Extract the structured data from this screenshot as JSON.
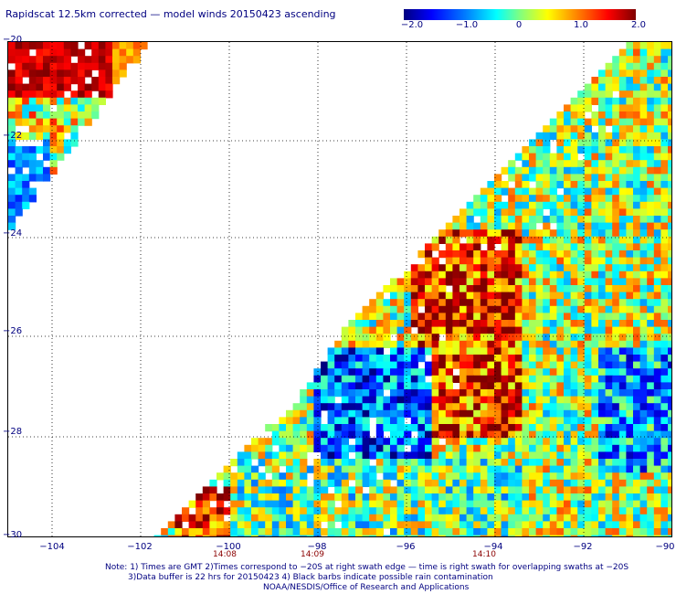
{
  "title": "Rapidscat 12.5km corrected — model winds 20150423 ascending",
  "colorbar": {
    "labels": [
      "−2.0",
      "−1.0",
      "0",
      "1.0",
      "2.0"
    ],
    "colors": [
      "#00007f",
      "#0000ff",
      "#0080ff",
      "#00ffff",
      "#80ff80",
      "#ffff00",
      "#ff8000",
      "#ff0000",
      "#7f0000"
    ]
  },
  "axes": {
    "lat_labels": [
      "−20",
      "−22",
      "−24",
      "−26",
      "−28",
      "−30"
    ],
    "lon_labels": [
      "−104",
      "−102",
      "−100",
      "−98",
      "−96",
      "−94",
      "−92",
      "−90"
    ],
    "time_labels": [
      "14:08",
      "14:09",
      "14:10"
    ],
    "lat_range": [
      -30,
      -20
    ],
    "lon_range": [
      -105,
      -90
    ],
    "grid": "dotted"
  },
  "notes": {
    "line1": "Note: 1) Times are GMT 2)Times correspond to −20S at right swath edge — time is right swath for overlapping swaths at −20S",
    "line2": "3)Data buffer is 22 hrs for 20150423 4) Black barbs indicate possible rain contamination",
    "line3": "NOAA/NESDIS/Office of Research and Applications"
  }
}
